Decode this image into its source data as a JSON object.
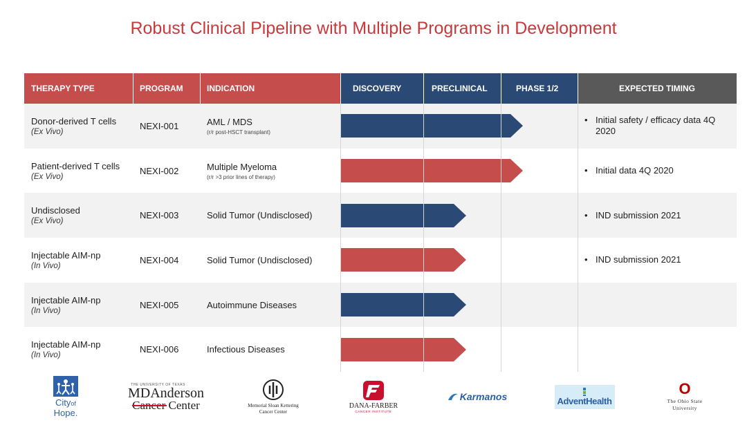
{
  "title": "Robust Clinical Pipeline with Multiple Programs in Development",
  "headers": {
    "therapy_type": "THERAPY TYPE",
    "program": "PROGRAM",
    "indication": "INDICATION",
    "discovery": "DISCOVERY",
    "preclinical": "PRECLINICAL",
    "phase": "PHASE 1/2",
    "timing": "EXPECTED TIMING"
  },
  "colors": {
    "red": "#c54d4b",
    "blue": "#2a4a75",
    "gray": "#595959",
    "title": "#c8393c"
  },
  "rows": [
    {
      "therapy": "Donor-derived T cells",
      "therapy_sub": "(Ex Vivo)",
      "program": "NEXI-001",
      "indication": "AML / MDS",
      "indication_note": "(r/r post-HSCT transplant)",
      "timing": "Initial safety / efficacy data 4Q 2020",
      "stage": "Phase 1/2",
      "progress": 0.77,
      "color": "blue"
    },
    {
      "therapy": "Patient-derived T cells",
      "therapy_sub": "(Ex Vivo)",
      "program": "NEXI-002",
      "indication": "Multiple Myeloma",
      "indication_note": "(r/r >3 prior lines of therapy)",
      "timing": "Initial data 4Q 2020",
      "stage": "Phase 1/2",
      "progress": 0.77,
      "color": "red"
    },
    {
      "therapy": "Undisclosed",
      "therapy_sub": "(Ex Vivo)",
      "program": "NEXI-003",
      "indication": "Solid Tumor (Undisclosed)",
      "indication_note": "",
      "timing": "IND submission 2021",
      "stage": "Preclinical",
      "progress": 0.53,
      "color": "blue"
    },
    {
      "therapy": "Injectable AIM-np",
      "therapy_sub": "(In Vivo)",
      "program": "NEXI-004",
      "indication": "Solid Tumor (Undisclosed)",
      "indication_note": "",
      "timing": "IND submission 2021",
      "stage": "Preclinical",
      "progress": 0.53,
      "color": "red"
    },
    {
      "therapy": "Injectable AIM-np",
      "therapy_sub": "(In Vivo)",
      "program": "NEXI-005",
      "indication": "Autoimmune Diseases",
      "indication_note": "",
      "timing": "",
      "stage": "Preclinical",
      "progress": 0.53,
      "color": "blue"
    },
    {
      "therapy": "Injectable AIM-np",
      "therapy_sub": "(In Vivo)",
      "program": "NEXI-006",
      "indication": "Infectious Diseases",
      "indication_note": "",
      "timing": "",
      "stage": "Preclinical",
      "progress": 0.53,
      "color": "red"
    }
  ],
  "logos": {
    "city_of_hope": {
      "line1": "City",
      "of": "of",
      "line2": "Hope."
    },
    "md_anderson": {
      "small": "THE UNIVERSITY OF TEXAS",
      "name": "MDAnderson",
      "sub": "Cancer Center"
    },
    "msk": {
      "line1": "Memorial Sloan Kettering",
      "line2": "Cancer Center"
    },
    "dana_farber": {
      "name": "DANA-FARBER",
      "sub": "CANCER INSTITUTE"
    },
    "karmanos": {
      "name": "Karmanos"
    },
    "advent": {
      "name": "AdventHealth"
    },
    "ohio_state": {
      "letter": "O",
      "line1": "The Ohio State",
      "line2": "University"
    }
  }
}
